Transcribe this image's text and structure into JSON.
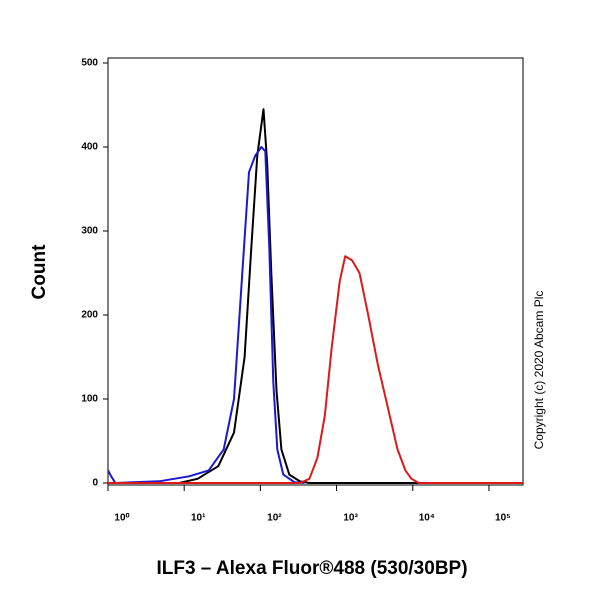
{
  "chart_data": {
    "type": "line",
    "xlabel": "ILF3 – Alexa Fluor®488 (530/30BP)",
    "ylabel": "Count",
    "annotation": "Copyright (c) 2020 Abcam Plc",
    "xscale": "log",
    "xlim": [
      1,
      280000
    ],
    "ylim": [
      0,
      500
    ],
    "xticks": [
      {
        "value": 1,
        "label": "10⁰"
      },
      {
        "value": 10,
        "label": "10¹"
      },
      {
        "value": 100,
        "label": "10²"
      },
      {
        "value": 1000,
        "label": "10³"
      },
      {
        "value": 10000,
        "label": "10⁴"
      },
      {
        "value": 100000,
        "label": "10⁵"
      }
    ],
    "yticks": [
      0,
      100,
      200,
      300,
      400,
      500
    ],
    "series": [
      {
        "color": "#000000",
        "x": [
          1,
          8.6,
          15,
          28,
          45,
          62,
          76,
          91,
          110,
          123,
          139,
          163,
          189,
          240,
          330,
          440,
          280000
        ],
        "values": [
          0,
          0,
          5,
          20,
          60,
          150,
          280,
          390,
          445,
          380,
          250,
          110,
          40,
          10,
          2,
          0,
          0
        ]
      },
      {
        "color": "#1a1acc",
        "x": [
          1,
          1.1,
          1.25,
          4.7,
          11.6,
          21,
          33,
          45,
          58,
          71,
          86,
          103,
          116,
          131,
          148,
          167,
          200,
          280,
          380
        ],
        "values": [
          15,
          8,
          0,
          2,
          8,
          15,
          40,
          100,
          250,
          370,
          390,
          400,
          395,
          280,
          120,
          40,
          10,
          1,
          0
        ]
      },
      {
        "color": "#dd1a1a",
        "x": [
          1,
          330,
          440,
          560,
          700,
          860,
          1100,
          1300,
          1600,
          2000,
          2600,
          3500,
          4700,
          6300,
          8000,
          9600,
          12000,
          280000
        ],
        "values": [
          0,
          0,
          5,
          30,
          80,
          160,
          240,
          270,
          265,
          250,
          200,
          140,
          90,
          40,
          15,
          5,
          0,
          0
        ]
      }
    ]
  }
}
